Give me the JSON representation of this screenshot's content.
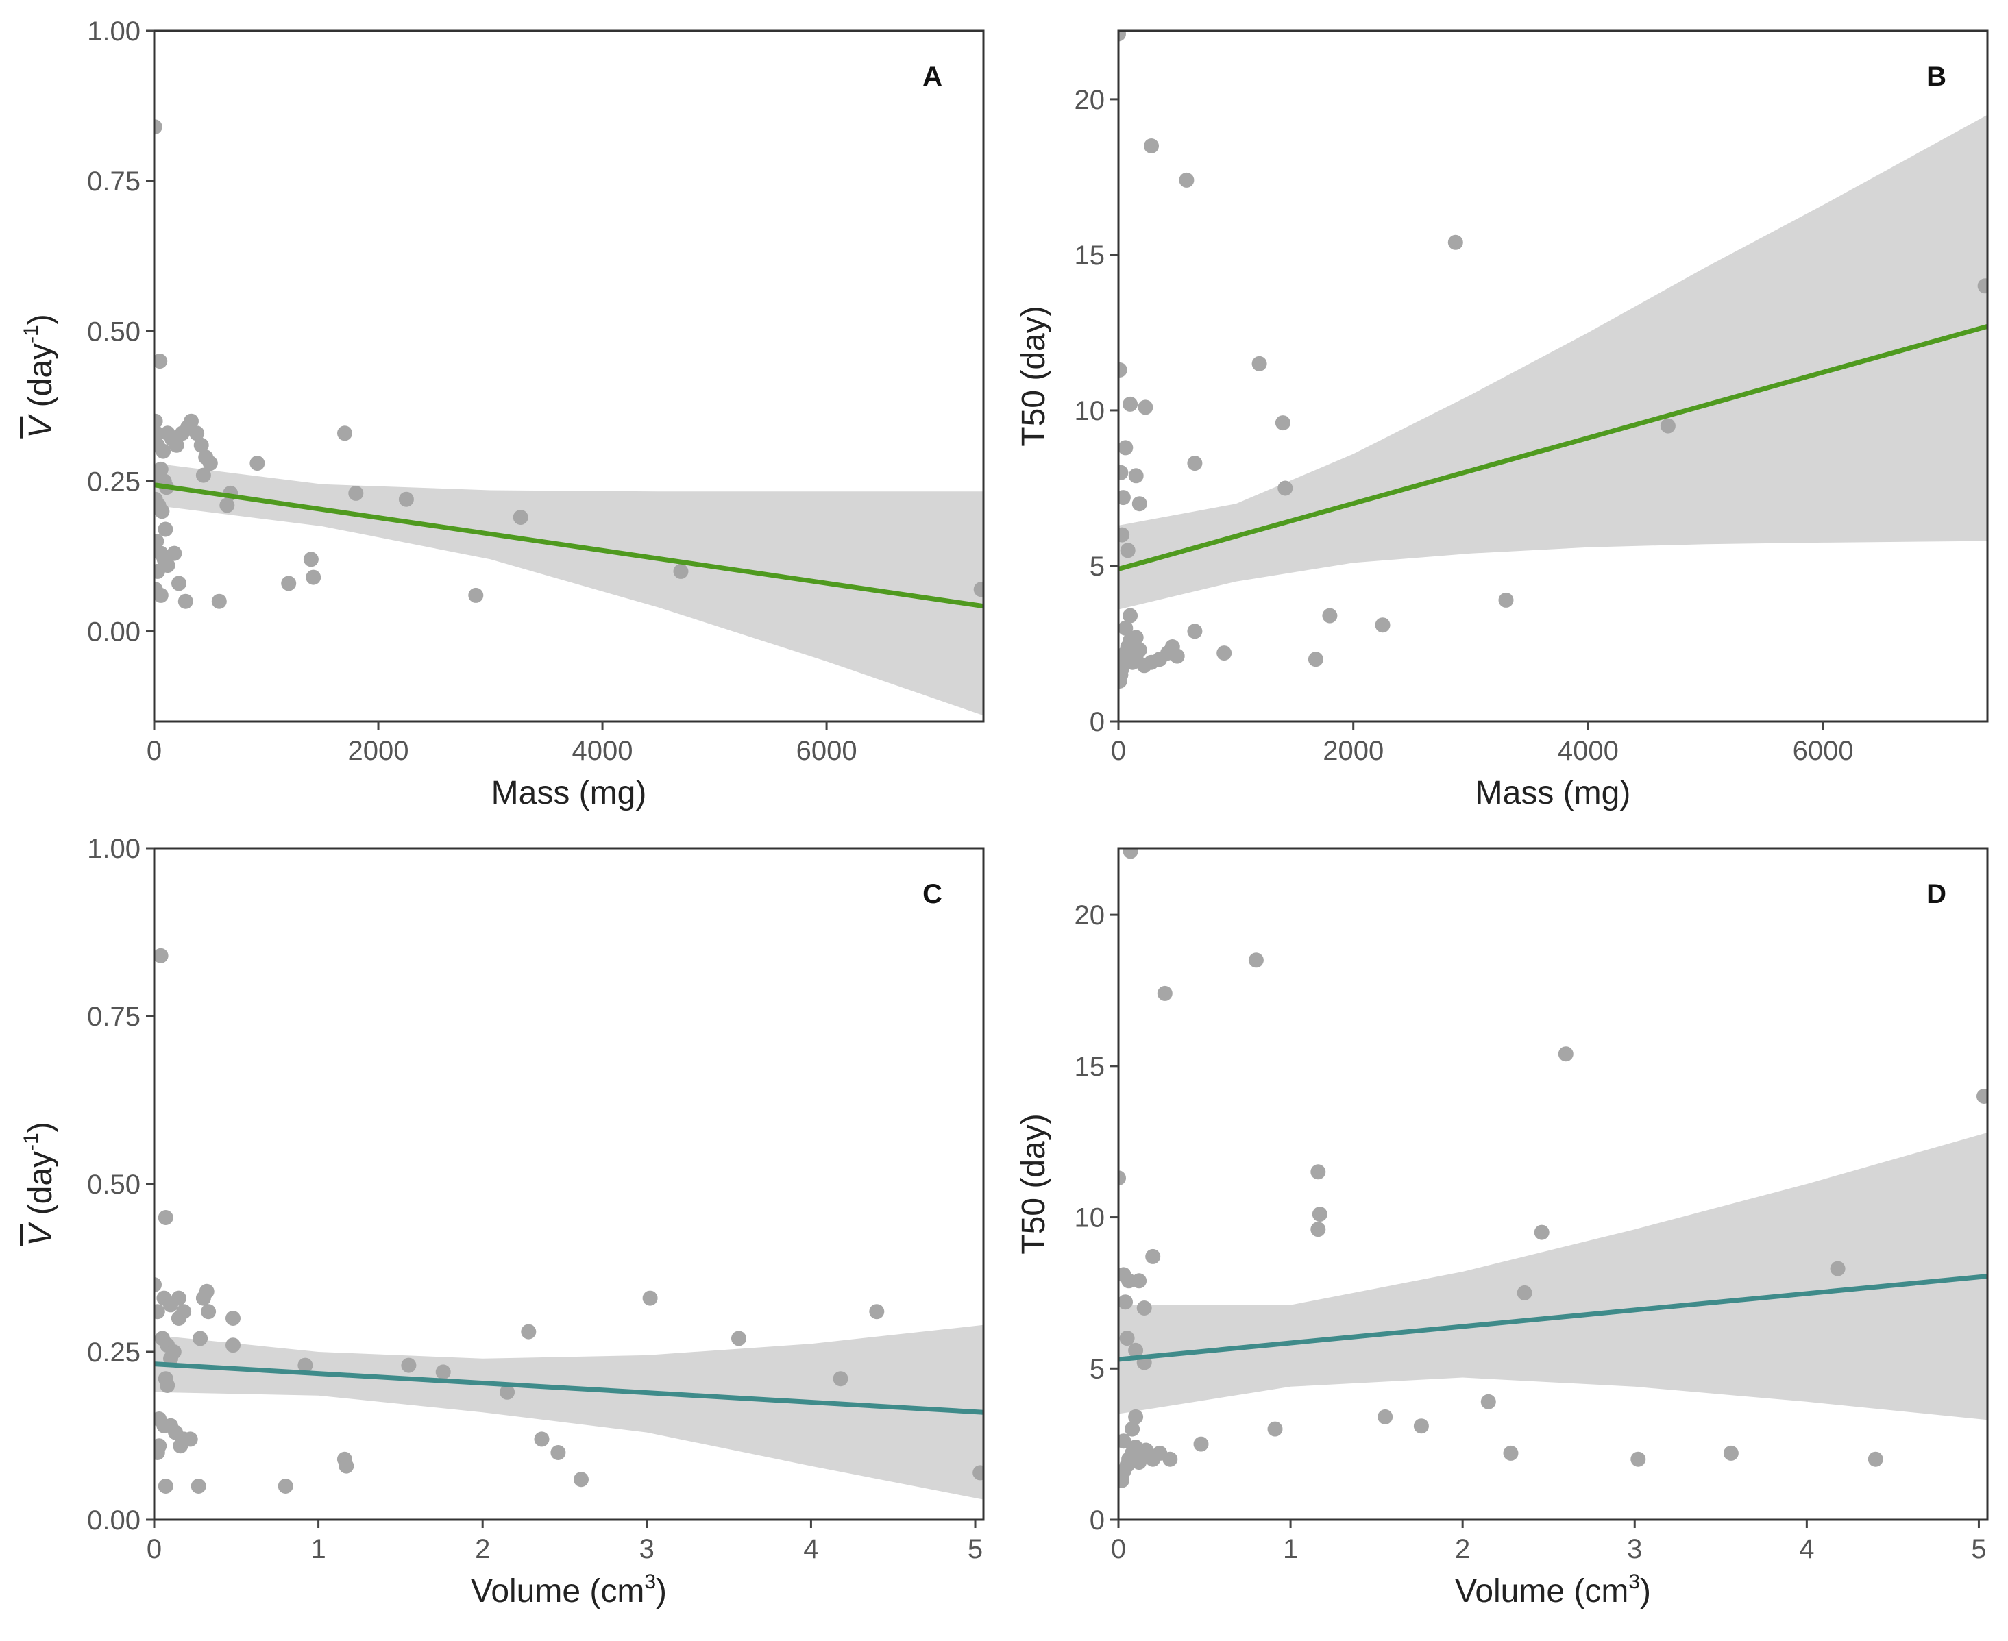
{
  "colors": {
    "green_line": "#4f9a1f",
    "teal_line": "#3f8b8a",
    "points": "#a6a6a6",
    "ribbon": "#d6d6d6"
  },
  "chart_data": [
    {
      "type": "scatter",
      "panel_label": "A",
      "xlabel": "Mass (mg)",
      "ylabel": "V̄ (day⁻¹)",
      "ylabel_symbol": "V",
      "ylabel_rest": " (day",
      "ylabel_sup": "-1",
      "ylabel_close": ")",
      "xlim": [
        0,
        7400
      ],
      "ylim": [
        -0.15,
        1.0
      ],
      "xticks": [
        0,
        2000,
        4000,
        6000
      ],
      "xtick_labels": [
        "0",
        "2000",
        "4000",
        "6000"
      ],
      "yticks": [
        0,
        0.25,
        0.5,
        0.75,
        1.0
      ],
      "ytick_labels": [
        "0.00",
        "0.25",
        "0.50",
        "0.75",
        "1.00"
      ],
      "points": [
        [
          5,
          0.84
        ],
        [
          50,
          0.45
        ],
        [
          10,
          0.35
        ],
        [
          20,
          0.33
        ],
        [
          30,
          0.31
        ],
        [
          80,
          0.3
        ],
        [
          120,
          0.33
        ],
        [
          160,
          0.32
        ],
        [
          200,
          0.31
        ],
        [
          250,
          0.33
        ],
        [
          300,
          0.34
        ],
        [
          330,
          0.35
        ],
        [
          380,
          0.33
        ],
        [
          420,
          0.31
        ],
        [
          460,
          0.29
        ],
        [
          500,
          0.28
        ],
        [
          440,
          0.26
        ],
        [
          30,
          0.26
        ],
        [
          60,
          0.27
        ],
        [
          90,
          0.25
        ],
        [
          110,
          0.24
        ],
        [
          10,
          0.22
        ],
        [
          40,
          0.21
        ],
        [
          70,
          0.2
        ],
        [
          100,
          0.17
        ],
        [
          20,
          0.15
        ],
        [
          60,
          0.13
        ],
        [
          90,
          0.12
        ],
        [
          120,
          0.11
        ],
        [
          180,
          0.13
        ],
        [
          220,
          0.08
        ],
        [
          30,
          0.1
        ],
        [
          10,
          0.07
        ],
        [
          60,
          0.06
        ],
        [
          280,
          0.05
        ],
        [
          580,
          0.05
        ],
        [
          650,
          0.21
        ],
        [
          680,
          0.23
        ],
        [
          920,
          0.28
        ],
        [
          1200,
          0.08
        ],
        [
          1400,
          0.12
        ],
        [
          1420,
          0.09
        ],
        [
          1700,
          0.33
        ],
        [
          1800,
          0.23
        ],
        [
          2250,
          0.22
        ],
        [
          2870,
          0.06
        ],
        [
          3270,
          0.19
        ],
        [
          4700,
          0.1
        ],
        [
          7380,
          0.07
        ]
      ],
      "fit_line": {
        "x": [
          0,
          7400
        ],
        "y": [
          0.244,
          0.042
        ]
      },
      "ribbon": {
        "x": [
          0,
          1500,
          3000,
          4500,
          6000,
          7400
        ],
        "lower": [
          0.21,
          0.175,
          0.12,
          0.04,
          -0.05,
          -0.14
        ],
        "upper": [
          0.28,
          0.245,
          0.235,
          0.233,
          0.233,
          0.233
        ]
      },
      "line_color": "#4f9a1f"
    },
    {
      "type": "scatter",
      "panel_label": "B",
      "xlabel": "Mass (mg)",
      "ylabel": "T50 (day)",
      "xlim": [
        0,
        7400
      ],
      "ylim": [
        0,
        22.2
      ],
      "xticks": [
        0,
        2000,
        4000,
        6000
      ],
      "xtick_labels": [
        "0",
        "2000",
        "4000",
        "6000"
      ],
      "yticks": [
        0,
        5,
        10,
        15,
        20
      ],
      "ytick_labels": [
        "0",
        "5",
        "10",
        "15",
        "20"
      ],
      "points": [
        [
          0,
          22.1
        ],
        [
          10,
          11.3
        ],
        [
          20,
          8.0
        ],
        [
          60,
          8.8
        ],
        [
          40,
          7.2
        ],
        [
          30,
          6.0
        ],
        [
          80,
          5.5
        ],
        [
          100,
          10.2
        ],
        [
          150,
          7.9
        ],
        [
          180,
          7.0
        ],
        [
          230,
          10.1
        ],
        [
          280,
          18.5
        ],
        [
          580,
          17.4
        ],
        [
          650,
          8.3
        ],
        [
          650,
          2.9
        ],
        [
          900,
          2.2
        ],
        [
          1200,
          11.5
        ],
        [
          1400,
          9.6
        ],
        [
          1420,
          7.5
        ],
        [
          1680,
          2.0
        ],
        [
          1800,
          3.4
        ],
        [
          2250,
          3.1
        ],
        [
          2870,
          15.4
        ],
        [
          3300,
          3.9
        ],
        [
          4680,
          9.5
        ],
        [
          7380,
          14.0
        ],
        [
          10,
          1.3
        ],
        [
          20,
          1.5
        ],
        [
          30,
          1.7
        ],
        [
          40,
          2.0
        ],
        [
          60,
          2.2
        ],
        [
          80,
          2.4
        ],
        [
          100,
          2.6
        ],
        [
          120,
          1.9
        ],
        [
          150,
          2.1
        ],
        [
          180,
          2.3
        ],
        [
          220,
          1.8
        ],
        [
          280,
          1.9
        ],
        [
          350,
          2.0
        ],
        [
          420,
          2.2
        ],
        [
          460,
          2.4
        ],
        [
          500,
          2.1
        ],
        [
          60,
          3.0
        ],
        [
          100,
          3.4
        ],
        [
          150,
          2.7
        ]
      ],
      "fit_line": {
        "x": [
          0,
          7400
        ],
        "y": [
          4.9,
          12.7
        ]
      },
      "ribbon": {
        "x": [
          0,
          1000,
          2000,
          3000,
          4000,
          5000,
          6000,
          7400
        ],
        "lower": [
          3.6,
          4.5,
          5.1,
          5.4,
          5.6,
          5.7,
          5.75,
          5.8
        ],
        "upper": [
          6.3,
          7.0,
          8.6,
          10.5,
          12.5,
          14.6,
          16.6,
          19.5
        ]
      },
      "line_color": "#4f9a1f"
    },
    {
      "type": "scatter",
      "panel_label": "C",
      "xlabel": "Volume (cm3)",
      "xlabel_main": "Volume (cm",
      "xlabel_sup": "3",
      "xlabel_close": ")",
      "ylabel": "V̄ (day⁻¹)",
      "ylabel_symbol": "V",
      "ylabel_rest": " (day",
      "ylabel_sup": "-1",
      "ylabel_close": ")",
      "xlim": [
        0,
        5.05
      ],
      "ylim": [
        0,
        1.0
      ],
      "xticks": [
        0,
        1,
        2,
        3,
        4,
        5
      ],
      "xtick_labels": [
        "0",
        "1",
        "2",
        "3",
        "4",
        "5"
      ],
      "yticks": [
        0,
        0.25,
        0.5,
        0.75,
        1.0
      ],
      "ytick_labels": [
        "0.00",
        "0.25",
        "0.50",
        "0.75",
        "1.00"
      ],
      "points": [
        [
          0.0,
          0.35
        ],
        [
          0.02,
          0.31
        ],
        [
          0.04,
          0.84
        ],
        [
          0.07,
          0.45
        ],
        [
          0.06,
          0.33
        ],
        [
          0.1,
          0.32
        ],
        [
          0.15,
          0.33
        ],
        [
          0.18,
          0.31
        ],
        [
          0.15,
          0.3
        ],
        [
          0.3,
          0.33
        ],
        [
          0.32,
          0.34
        ],
        [
          0.33,
          0.31
        ],
        [
          0.28,
          0.27
        ],
        [
          0.48,
          0.3
        ],
        [
          0.48,
          0.26
        ],
        [
          0.05,
          0.27
        ],
        [
          0.08,
          0.26
        ],
        [
          0.1,
          0.24
        ],
        [
          0.12,
          0.25
        ],
        [
          0.07,
          0.21
        ],
        [
          0.08,
          0.2
        ],
        [
          0.03,
          0.15
        ],
        [
          0.06,
          0.14
        ],
        [
          0.1,
          0.14
        ],
        [
          0.13,
          0.13
        ],
        [
          0.16,
          0.11
        ],
        [
          0.18,
          0.12
        ],
        [
          0.22,
          0.12
        ],
        [
          0.02,
          0.1
        ],
        [
          0.03,
          0.11
        ],
        [
          0.07,
          0.05
        ],
        [
          0.27,
          0.05
        ],
        [
          0.8,
          0.05
        ],
        [
          0.92,
          0.23
        ],
        [
          1.16,
          0.09
        ],
        [
          1.17,
          0.08
        ],
        [
          1.55,
          0.23
        ],
        [
          1.76,
          0.22
        ],
        [
          2.15,
          0.19
        ],
        [
          2.28,
          0.28
        ],
        [
          2.36,
          0.12
        ],
        [
          2.46,
          0.1
        ],
        [
          2.6,
          0.06
        ],
        [
          3.02,
          0.33
        ],
        [
          3.56,
          0.27
        ],
        [
          4.18,
          0.21
        ],
        [
          4.4,
          0.31
        ],
        [
          5.03,
          0.07
        ]
      ],
      "fit_line": {
        "x": [
          0,
          5.05
        ],
        "y": [
          0.232,
          0.16
        ]
      },
      "ribbon": {
        "x": [
          0,
          1,
          2,
          3,
          4,
          5.05
        ],
        "lower": [
          0.19,
          0.185,
          0.16,
          0.13,
          0.08,
          0.03
        ],
        "upper": [
          0.275,
          0.25,
          0.24,
          0.245,
          0.262,
          0.29
        ]
      },
      "line_color": "#3f8b8a"
    },
    {
      "type": "scatter",
      "panel_label": "D",
      "xlabel": "Volume (cm3)",
      "xlabel_main": "Volume (cm",
      "xlabel_sup": "3",
      "xlabel_close": ")",
      "ylabel": "T50 (day)",
      "xlim": [
        0,
        5.05
      ],
      "ylim": [
        0,
        22.2
      ],
      "xticks": [
        0,
        1,
        2,
        3,
        4,
        5
      ],
      "xtick_labels": [
        "0",
        "1",
        "2",
        "3",
        "4",
        "5"
      ],
      "yticks": [
        0,
        5,
        10,
        15,
        20
      ],
      "ytick_labels": [
        "0",
        "5",
        "10",
        "15",
        "20"
      ],
      "points": [
        [
          0.07,
          22.1
        ],
        [
          0.0,
          11.3
        ],
        [
          0.03,
          8.1
        ],
        [
          0.06,
          7.9
        ],
        [
          0.04,
          7.2
        ],
        [
          0.12,
          7.9
        ],
        [
          0.15,
          7.0
        ],
        [
          0.2,
          8.7
        ],
        [
          0.05,
          6.0
        ],
        [
          0.1,
          5.6
        ],
        [
          0.15,
          5.2
        ],
        [
          0.27,
          17.4
        ],
        [
          0.8,
          18.5
        ],
        [
          1.16,
          11.5
        ],
        [
          1.17,
          10.1
        ],
        [
          1.16,
          9.6
        ],
        [
          2.46,
          9.5
        ],
        [
          2.36,
          7.5
        ],
        [
          4.18,
          8.3
        ],
        [
          2.6,
          15.4
        ],
        [
          5.03,
          14.0
        ],
        [
          0.91,
          3.0
        ],
        [
          1.55,
          3.4
        ],
        [
          1.76,
          3.1
        ],
        [
          2.15,
          3.9
        ],
        [
          2.28,
          2.2
        ],
        [
          3.02,
          2.0
        ],
        [
          3.56,
          2.2
        ],
        [
          4.4,
          2.0
        ],
        [
          0.48,
          2.5
        ],
        [
          0.02,
          1.3
        ],
        [
          0.03,
          1.6
        ],
        [
          0.05,
          1.8
        ],
        [
          0.06,
          2.0
        ],
        [
          0.08,
          2.2
        ],
        [
          0.1,
          2.4
        ],
        [
          0.12,
          1.9
        ],
        [
          0.14,
          2.1
        ],
        [
          0.16,
          2.3
        ],
        [
          0.2,
          2.0
        ],
        [
          0.24,
          2.2
        ],
        [
          0.3,
          2.0
        ],
        [
          0.08,
          3.0
        ],
        [
          0.1,
          3.4
        ],
        [
          0.03,
          2.6
        ]
      ],
      "fit_line": {
        "x": [
          0,
          5.05
        ],
        "y": [
          5.3,
          8.05
        ]
      },
      "ribbon": {
        "x": [
          0,
          1,
          2,
          3,
          4,
          5.05
        ],
        "lower": [
          3.5,
          4.4,
          4.7,
          4.4,
          3.9,
          3.3
        ],
        "upper": [
          7.1,
          7.1,
          8.2,
          9.6,
          11.1,
          12.8
        ]
      },
      "line_color": "#3f8b8a"
    }
  ]
}
